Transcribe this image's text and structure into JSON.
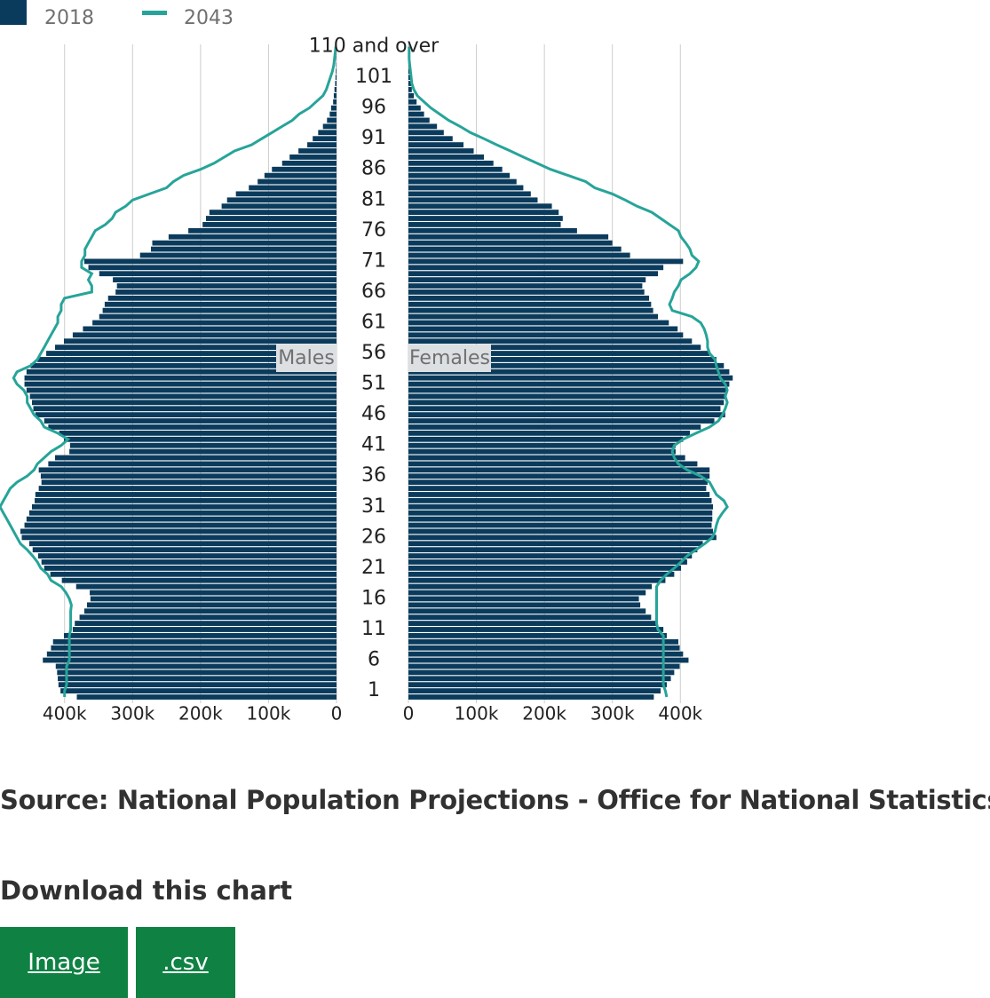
{
  "chart_data": {
    "type": "population-pyramid",
    "legend": "top-left",
    "grid": true,
    "labels": {
      "left": "Males",
      "right": "Females"
    },
    "categories": [
      null,
      "1",
      null,
      null,
      null,
      null,
      "6",
      null,
      null,
      null,
      null,
      "11",
      null,
      null,
      null,
      null,
      "16",
      null,
      null,
      null,
      null,
      "21",
      null,
      null,
      null,
      null,
      "26",
      null,
      null,
      null,
      null,
      "31",
      null,
      null,
      null,
      null,
      "36",
      null,
      null,
      null,
      null,
      "41",
      null,
      null,
      null,
      null,
      "46",
      null,
      null,
      null,
      null,
      "51",
      null,
      null,
      null,
      null,
      "56",
      null,
      null,
      null,
      null,
      "61",
      null,
      null,
      null,
      null,
      "66",
      null,
      null,
      null,
      null,
      "71",
      null,
      null,
      null,
      null,
      "76",
      null,
      null,
      null,
      null,
      "81",
      null,
      null,
      null,
      null,
      "86",
      null,
      null,
      null,
      null,
      "91",
      null,
      null,
      null,
      null,
      "96",
      null,
      null,
      null,
      null,
      "101",
      null,
      null,
      null,
      null,
      "110 and over"
    ],
    "xlim": [
      0,
      495000
    ],
    "xticks": [
      0,
      {
        "value": 100000,
        "label": "100k"
      },
      {
        "value": 200000,
        "label": "200k"
      },
      {
        "value": 300000,
        "label": "300k"
      },
      {
        "value": 400000,
        "label": "400k"
      }
    ],
    "series": [
      {
        "name": "2018",
        "color": "#0b3b5c",
        "mark": "bar",
        "left": [
          382000,
          406000,
          409000,
          410000,
          411000,
          413000,
          432000,
          426000,
          420000,
          417000,
          401000,
          388000,
          385000,
          378000,
          371000,
          367000,
          362000,
          363000,
          383000,
          404000,
          421000,
          430000,
          434000,
          439000,
          447000,
          452000,
          463000,
          465000,
          459000,
          456000,
          452000,
          448000,
          444000,
          443000,
          438000,
          434000,
          435000,
          438000,
          424000,
          414000,
          393000,
          392000,
          401000,
          408000,
          424000,
          430000,
          443000,
          446000,
          448000,
          451000,
          456000,
          459000,
          459000,
          456000,
          450000,
          440000,
          427000,
          414000,
          401000,
          388000,
          373000,
          359000,
          349000,
          344000,
          341000,
          336000,
          325000,
          323000,
          329000,
          349000,
          365000,
          371000,
          289000,
          273000,
          271000,
          247000,
          218000,
          197000,
          192000,
          187000,
          169000,
          161000,
          148000,
          129000,
          116000,
          106000,
          95000,
          80000,
          69000,
          56000,
          43000,
          35000,
          27000,
          20000,
          14000,
          10000,
          8000,
          5000,
          4000,
          3000,
          2000,
          1500,
          1000,
          600,
          400,
          200,
          100
        ],
        "right": [
          361000,
          371000,
          380000,
          386000,
          391000,
          399000,
          412000,
          404000,
          399000,
          397000,
          380000,
          375000,
          365000,
          357000,
          349000,
          341000,
          339000,
          349000,
          358000,
          378000,
          391000,
          401000,
          410000,
          417000,
          425000,
          433000,
          453000,
          448000,
          446000,
          447000,
          447000,
          448000,
          446000,
          443000,
          438000,
          440000,
          443000,
          443000,
          425000,
          407000,
          393000,
          393000,
          404000,
          414000,
          430000,
          450000,
          466000,
          459000,
          464000,
          466000,
          469000,
          472000,
          477000,
          472000,
          464000,
          453000,
          443000,
          430000,
          417000,
          404000,
          396000,
          383000,
          367000,
          360000,
          357000,
          354000,
          347000,
          344000,
          349000,
          367000,
          375000,
          404000,
          326000,
          313000,
          300000,
          294000,
          248000,
          224000,
          227000,
          221000,
          211000,
          190000,
          180000,
          169000,
          159000,
          149000,
          138000,
          125000,
          111000,
          96000,
          81000,
          65000,
          52000,
          42000,
          31000,
          23000,
          18000,
          12000,
          8000,
          5000,
          4000,
          3000,
          2000,
          1000,
          1000,
          500,
          300
        ]
      },
      {
        "name": "2043",
        "color": "#27a499",
        "mark": "line",
        "left": [
          400000,
          400000,
          397000,
          397000,
          397000,
          397000,
          393000,
          393000,
          393000,
          393000,
          393000,
          391000,
          391000,
          391000,
          391000,
          390000,
          393000,
          398000,
          405000,
          420000,
          425000,
          435000,
          440000,
          447000,
          455000,
          465000,
          470000,
          475000,
          480000,
          485000,
          490000,
          495000,
          490000,
          485000,
          480000,
          470000,
          455000,
          445000,
          440000,
          430000,
          420000,
          405000,
          395000,
          410000,
          430000,
          435000,
          445000,
          450000,
          455000,
          455000,
          460000,
          470000,
          475000,
          470000,
          450000,
          440000,
          435000,
          430000,
          425000,
          420000,
          415000,
          410000,
          410000,
          405000,
          405000,
          400000,
          360000,
          360000,
          365000,
          360000,
          375000,
          375000,
          370000,
          370000,
          365000,
          360000,
          355000,
          340000,
          330000,
          325000,
          310000,
          300000,
          275000,
          250000,
          240000,
          225000,
          200000,
          180000,
          165000,
          150000,
          125000,
          110000,
          95000,
          80000,
          65000,
          55000,
          40000,
          30000,
          20000,
          15000,
          12000,
          9000,
          6000,
          4000,
          3000,
          2000,
          1000
        ],
        "right": [
          380000,
          378000,
          375000,
          375000,
          375000,
          375000,
          375000,
          375000,
          375000,
          375000,
          375000,
          367000,
          365000,
          365000,
          365000,
          365000,
          365000,
          365000,
          365000,
          371000,
          380000,
          391000,
          401000,
          410000,
          423000,
          436000,
          447000,
          451000,
          453000,
          456000,
          462000,
          469000,
          464000,
          453000,
          448000,
          443000,
          430000,
          410000,
          397000,
          391000,
          388000,
          391000,
          404000,
          423000,
          443000,
          456000,
          462000,
          466000,
          469000,
          466000,
          469000,
          466000,
          459000,
          456000,
          453000,
          451000,
          443000,
          440000,
          440000,
          438000,
          435000,
          430000,
          417000,
          388000,
          384000,
          388000,
          391000,
          397000,
          401000,
          414000,
          423000,
          427000,
          417000,
          414000,
          408000,
          401000,
          397000,
          384000,
          371000,
          358000,
          336000,
          319000,
          300000,
          274000,
          261000,
          235000,
          209000,
          189000,
          169000,
          150000,
          130000,
          111000,
          91000,
          76000,
          59000,
          46000,
          33000,
          23000,
          13000,
          8000,
          5000,
          4000,
          3000,
          2000,
          1000,
          1000,
          1000
        ]
      }
    ]
  },
  "source": "Source: National Population Projections - Office for National Statistics",
  "download": {
    "heading": "Download this chart",
    "buttons": [
      "Image",
      ".csv"
    ]
  }
}
